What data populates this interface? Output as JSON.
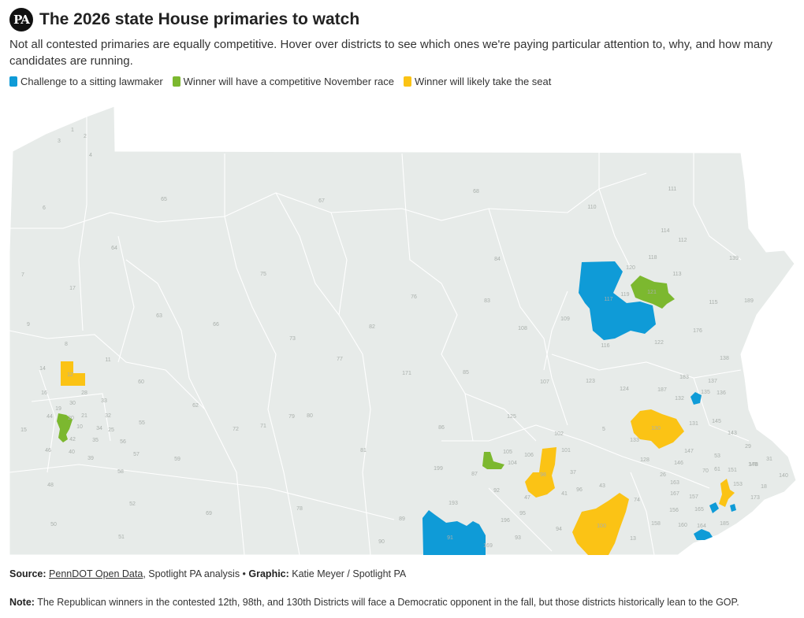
{
  "header": {
    "logo_text": "PA",
    "title": "The 2026 state House primaries to watch",
    "subtitle": "Not all contested primaries are equally competitive. Hover over districts to see which ones we're paying particular attention to, why, and how many candidates are running."
  },
  "legend": [
    {
      "label": "Challenge to a sitting lawmaker",
      "color": "#0f9bd7"
    },
    {
      "label": "Winner will have a competitive November race",
      "color": "#7cb82f"
    },
    {
      "label": "Winner will likely take the seat",
      "color": "#fbc315"
    }
  ],
  "map": {
    "base_color": "#e7ebe9",
    "border_color": "#ffffff",
    "highlighted_districts": [
      {
        "district": "12",
        "category": "Winner will likely take the seat"
      },
      {
        "district": "98",
        "category": "Winner will likely take the seat"
      },
      {
        "district": "130",
        "category": "Winner will likely take the seat"
      },
      {
        "district": "100",
        "category": "Winner will likely take the seat"
      },
      {
        "district": "116",
        "category": "Challenge to a sitting lawmaker"
      },
      {
        "district": "91",
        "category": "Challenge to a sitting lawmaker"
      },
      {
        "district": "121",
        "category": "Winner will have a competitive November race"
      },
      {
        "district": "44",
        "category": "Winner will have a competitive November race"
      }
    ],
    "district_labels": [
      "1",
      "2",
      "3",
      "4",
      "5",
      "6",
      "7",
      "8",
      "9",
      "10",
      "11",
      "12",
      "13",
      "14",
      "15",
      "16",
      "17",
      "18",
      "19",
      "20",
      "21",
      "25",
      "26",
      "28",
      "29",
      "30",
      "31",
      "32",
      "33",
      "34",
      "35",
      "37",
      "39",
      "40",
      "41",
      "42",
      "43",
      "44",
      "46",
      "47",
      "48",
      "50",
      "51",
      "52",
      "53",
      "55",
      "56",
      "57",
      "58",
      "59",
      "60",
      "61",
      "62",
      "63",
      "64",
      "65",
      "66",
      "67",
      "68",
      "69",
      "70",
      "71",
      "72",
      "73",
      "74",
      "75",
      "76",
      "77",
      "78",
      "79",
      "80",
      "81",
      "82",
      "83",
      "84",
      "85",
      "86",
      "87",
      "89",
      "90",
      "91",
      "92",
      "93",
      "94",
      "95",
      "96",
      "98",
      "100",
      "101",
      "102",
      "104",
      "105",
      "106",
      "107",
      "108",
      "109",
      "110",
      "111",
      "112",
      "113",
      "114",
      "115",
      "116",
      "117",
      "118",
      "119",
      "120",
      "121",
      "122",
      "123",
      "124",
      "125",
      "128",
      "130",
      "131",
      "132",
      "133",
      "135",
      "136",
      "137",
      "138",
      "139",
      "140",
      "143",
      "145",
      "146",
      "147",
      "148",
      "151",
      "153",
      "156",
      "157",
      "158",
      "160",
      "163",
      "164",
      "165",
      "167",
      "169",
      "171",
      "173",
      "176",
      "178",
      "183",
      "185",
      "187",
      "189",
      "193",
      "196",
      "199"
    ]
  },
  "footer": {
    "source_label": "Source:",
    "source_link": "PennDOT Open Data",
    "source_rest": ", Spotlight PA analysis • ",
    "graphic_label": "Graphic:",
    "graphic_text": " Katie Meyer / Spotlight PA",
    "note_label": "Note:",
    "note_text": " The Republican winners in the contested 12th, 98th, and 130th Districts will face a Democratic opponent in the fall, but those districts historically lean to the GOP."
  }
}
